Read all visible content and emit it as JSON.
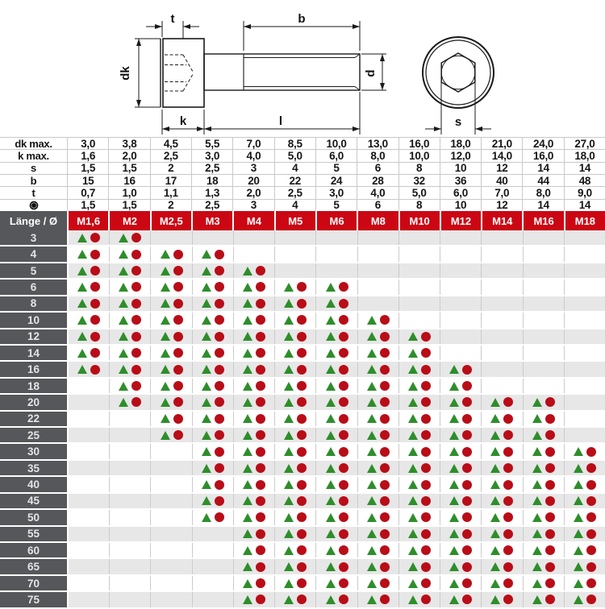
{
  "drawing": {
    "dims": {
      "t": "t",
      "dk": "dk",
      "k": "k",
      "b": "b",
      "l": "l",
      "d": "d",
      "s": "s"
    }
  },
  "spec_table": {
    "rows": [
      {
        "label": "dk max.",
        "values": [
          "3,0",
          "3,8",
          "4,5",
          "5,5",
          "7,0",
          "8,5",
          "10,0",
          "13,0",
          "16,0",
          "18,0",
          "21,0",
          "24,0",
          "27,0"
        ]
      },
      {
        "label": "k max.",
        "values": [
          "1,6",
          "2,0",
          "2,5",
          "3,0",
          "4,0",
          "5,0",
          "6,0",
          "8,0",
          "10,0",
          "12,0",
          "14,0",
          "16,0",
          "18,0"
        ]
      },
      {
        "label": "s",
        "values": [
          "1,5",
          "1,5",
          "2",
          "2,5",
          "3",
          "4",
          "5",
          "6",
          "8",
          "10",
          "12",
          "14",
          "14"
        ]
      },
      {
        "label": "b",
        "values": [
          "15",
          "16",
          "17",
          "18",
          "20",
          "22",
          "24",
          "28",
          "32",
          "36",
          "40",
          "44",
          "48"
        ]
      },
      {
        "label": "t",
        "values": [
          "0,7",
          "1,0",
          "1,1",
          "1,3",
          "2,0",
          "2,5",
          "3,0",
          "4,0",
          "5,0",
          "6,0",
          "7,0",
          "8,0",
          "9,0"
        ]
      },
      {
        "label": "●",
        "icon": "hex-socket-icon",
        "values": [
          "1,5",
          "1,5",
          "2",
          "2,5",
          "3",
          "4",
          "5",
          "6",
          "8",
          "10",
          "12",
          "14",
          "14"
        ]
      }
    ]
  },
  "matrix": {
    "corner_label": "Länge / Ø",
    "columns": [
      "M1,6",
      "M2",
      "M2,5",
      "M3",
      "M4",
      "M5",
      "M6",
      "M8",
      "M10",
      "M12",
      "M14",
      "M16",
      "M18"
    ],
    "marker_meaning": {
      "triangle": "triangle-marker",
      "circle": "circle-marker"
    },
    "rows": [
      {
        "length": "3",
        "cells": [
          1,
          1,
          0,
          0,
          0,
          0,
          0,
          0,
          0,
          0,
          0,
          0,
          0
        ]
      },
      {
        "length": "4",
        "cells": [
          1,
          1,
          1,
          1,
          0,
          0,
          0,
          0,
          0,
          0,
          0,
          0,
          0
        ]
      },
      {
        "length": "5",
        "cells": [
          1,
          1,
          1,
          1,
          1,
          0,
          0,
          0,
          0,
          0,
          0,
          0,
          0
        ]
      },
      {
        "length": "6",
        "cells": [
          1,
          1,
          1,
          1,
          1,
          1,
          1,
          0,
          0,
          0,
          0,
          0,
          0
        ]
      },
      {
        "length": "8",
        "cells": [
          1,
          1,
          1,
          1,
          1,
          1,
          1,
          0,
          0,
          0,
          0,
          0,
          0
        ]
      },
      {
        "length": "10",
        "cells": [
          1,
          1,
          1,
          1,
          1,
          1,
          1,
          1,
          0,
          0,
          0,
          0,
          0
        ]
      },
      {
        "length": "12",
        "cells": [
          1,
          1,
          1,
          1,
          1,
          1,
          1,
          1,
          1,
          0,
          0,
          0,
          0
        ]
      },
      {
        "length": "14",
        "cells": [
          1,
          1,
          1,
          1,
          1,
          1,
          1,
          1,
          1,
          0,
          0,
          0,
          0
        ]
      },
      {
        "length": "16",
        "cells": [
          1,
          1,
          1,
          1,
          1,
          1,
          1,
          1,
          1,
          1,
          0,
          0,
          0
        ]
      },
      {
        "length": "18",
        "cells": [
          0,
          1,
          1,
          1,
          1,
          1,
          1,
          1,
          1,
          1,
          0,
          0,
          0
        ]
      },
      {
        "length": "20",
        "cells": [
          0,
          1,
          1,
          1,
          1,
          1,
          1,
          1,
          1,
          1,
          1,
          1,
          0
        ]
      },
      {
        "length": "22",
        "cells": [
          0,
          0,
          1,
          1,
          1,
          1,
          1,
          1,
          1,
          1,
          1,
          1,
          0
        ]
      },
      {
        "length": "25",
        "cells": [
          0,
          0,
          1,
          1,
          1,
          1,
          1,
          1,
          1,
          1,
          1,
          1,
          0
        ]
      },
      {
        "length": "30",
        "cells": [
          0,
          0,
          0,
          1,
          1,
          1,
          1,
          1,
          1,
          1,
          1,
          1,
          1
        ]
      },
      {
        "length": "35",
        "cells": [
          0,
          0,
          0,
          1,
          1,
          1,
          1,
          1,
          1,
          1,
          1,
          1,
          1
        ]
      },
      {
        "length": "40",
        "cells": [
          0,
          0,
          0,
          1,
          1,
          1,
          1,
          1,
          1,
          1,
          1,
          1,
          1
        ]
      },
      {
        "length": "45",
        "cells": [
          0,
          0,
          0,
          1,
          1,
          1,
          1,
          1,
          1,
          1,
          1,
          1,
          1
        ]
      },
      {
        "length": "50",
        "cells": [
          0,
          0,
          0,
          1,
          1,
          1,
          1,
          1,
          1,
          1,
          1,
          1,
          1
        ]
      },
      {
        "length": "55",
        "cells": [
          0,
          0,
          0,
          0,
          1,
          1,
          1,
          1,
          1,
          1,
          1,
          1,
          1
        ]
      },
      {
        "length": "60",
        "cells": [
          0,
          0,
          0,
          0,
          1,
          1,
          1,
          1,
          1,
          1,
          1,
          1,
          1
        ]
      },
      {
        "length": "65",
        "cells": [
          0,
          0,
          0,
          0,
          1,
          1,
          1,
          1,
          1,
          1,
          1,
          1,
          1
        ]
      },
      {
        "length": "70",
        "cells": [
          0,
          0,
          0,
          0,
          1,
          1,
          1,
          1,
          1,
          1,
          1,
          1,
          1
        ]
      },
      {
        "length": "75",
        "cells": [
          0,
          0,
          0,
          0,
          1,
          1,
          1,
          1,
          1,
          1,
          1,
          1,
          1
        ]
      }
    ]
  },
  "colors": {
    "header_red": "#cb0714",
    "label_gray": "#55575a",
    "row_alt_gray": "#e7e7e7",
    "triangle_green": "#2e8e2b",
    "circle_red": "#b90d18"
  }
}
